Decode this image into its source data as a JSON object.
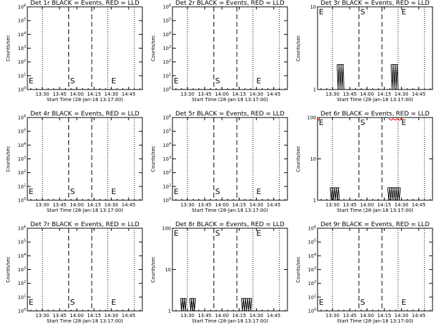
{
  "chart_data": [
    {
      "type": "line",
      "title": "Det 1r BLACK = Events, RED = LLD",
      "xlabel": "Start Time (28-Jan-18 13:17:00)",
      "ylabel": "Counts/sec",
      "yscale": "log",
      "ylim": [
        1,
        1000000
      ],
      "yticks": [
        "10^0",
        "10^1",
        "10^2",
        "10^3",
        "10^4",
        "10^5",
        "10^6"
      ],
      "xticks": [
        "13:30",
        "13:45",
        "14:00",
        "14:15",
        "14:30",
        "14:45"
      ],
      "marker_labels": {
        "left": "E",
        "mid": "S",
        "right": "E"
      },
      "events_blocks": [],
      "lld": false
    },
    {
      "type": "line",
      "title": "Det 2r BLACK = Events, RED = LLD",
      "xlabel": "Start Time (28-Jan-18 13:17:00)",
      "ylabel": "Counts/sec",
      "yscale": "log",
      "ylim": [
        1,
        1000000
      ],
      "yticks": [
        "10^0",
        "10^1",
        "10^2",
        "10^3",
        "10^4",
        "10^5",
        "10^6"
      ],
      "xticks": [
        "13:30",
        "13:45",
        "14:00",
        "14:15",
        "14:30",
        "14:45"
      ],
      "marker_labels": {
        "left": "E",
        "mid": "S",
        "right": "E"
      },
      "events_blocks": [],
      "lld": false
    },
    {
      "type": "line",
      "title": "Det 3r BLACK = Events, RED = LLD",
      "xlabel": "Start Time (28-Jan-18 13:17:00)",
      "ylabel": "Counts/sec",
      "yscale": "log",
      "ylim": [
        1,
        10
      ],
      "yticks": [
        "1",
        "10"
      ],
      "xticks": [
        "13:30",
        "13:45",
        "14:00",
        "14:15",
        "14:30",
        "14:45"
      ],
      "marker_labels": {
        "left": "E",
        "mid": "S",
        "right": "E"
      },
      "events_blocks": [
        {
          "start": "13:34",
          "end": "13:40",
          "level": 2
        },
        {
          "start": "14:21",
          "end": "14:27",
          "level": 2
        }
      ],
      "lld": false
    },
    {
      "type": "line",
      "title": "Det 4r BLACK = Events, RED = LLD",
      "xlabel": "Start Time (28-Jan-18 13:17:00)",
      "ylabel": "Counts/sec",
      "yscale": "log",
      "ylim": [
        1,
        1000000
      ],
      "yticks": [
        "10^0",
        "10^1",
        "10^2",
        "10^3",
        "10^4",
        "10^5",
        "10^6"
      ],
      "xticks": [
        "13:30",
        "13:45",
        "14:00",
        "14:15",
        "14:30",
        "14:45"
      ],
      "marker_labels": {
        "left": "E",
        "mid": "S",
        "right": "E"
      },
      "events_blocks": [],
      "lld": false
    },
    {
      "type": "line",
      "title": "Det 5r BLACK = Events, RED = LLD",
      "xlabel": "Start Time (28-Jan-18 13:17:00)",
      "ylabel": "Counts/sec",
      "yscale": "log",
      "ylim": [
        1,
        1000000
      ],
      "yticks": [
        "10^0",
        "10^1",
        "10^2",
        "10^3",
        "10^4",
        "10^5",
        "10^6"
      ],
      "xticks": [
        "13:30",
        "13:45",
        "14:00",
        "14:15",
        "14:30",
        "14:45"
      ],
      "marker_labels": {
        "left": "E",
        "mid": "S",
        "right": "E"
      },
      "events_blocks": [],
      "lld": false
    },
    {
      "type": "line",
      "title": "Det 6r BLACK = Events, RED = LLD",
      "xlabel": "Start Time (28-Jan-18 13:17:00)",
      "ylabel": "Counts/sec",
      "yscale": "log",
      "ylim": [
        1,
        100
      ],
      "yticks": [
        "1",
        "10",
        "100"
      ],
      "xticks": [
        "13:30",
        "13:45",
        "14:00",
        "14:15",
        "14:30",
        "14:45"
      ],
      "marker_labels": {
        "left": "E",
        "mid": "S",
        "right": "E"
      },
      "events_blocks": [
        {
          "start": "13:28",
          "end": "13:36",
          "level": 2
        },
        {
          "start": "14:18",
          "end": "14:29",
          "level": 2
        }
      ],
      "lld": true,
      "lld_level": 90,
      "lld_ranges": [
        {
          "start": "13:17",
          "end": "13:19"
        },
        {
          "start": "14:19",
          "end": "14:32"
        }
      ]
    },
    {
      "type": "line",
      "title": "Det 7r BLACK = Events, RED = LLD",
      "xlabel": "Start Time (28-Jan-18 13:17:00)",
      "ylabel": "Counts/sec",
      "yscale": "log",
      "ylim": [
        1,
        1000000
      ],
      "yticks": [
        "10^0",
        "10^1",
        "10^2",
        "10^3",
        "10^4",
        "10^5",
        "10^6"
      ],
      "xticks": [
        "13:30",
        "13:45",
        "14:00",
        "14:15",
        "14:30",
        "14:45"
      ],
      "marker_labels": {
        "left": "E",
        "mid": "S",
        "right": "E"
      },
      "events_blocks": [],
      "lld": false
    },
    {
      "type": "line",
      "title": "Det 8r BLACK = Events, RED = LLD",
      "xlabel": "Start Time (28-Jan-18 13:17:00)",
      "ylabel": "Counts/sec",
      "yscale": "log",
      "ylim": [
        1,
        100
      ],
      "yticks": [
        "1",
        "10",
        "100"
      ],
      "xticks": [
        "13:30",
        "13:45",
        "14:00",
        "14:15",
        "14:30",
        "14:45"
      ],
      "marker_labels": {
        "left": "E",
        "mid": "S",
        "right": "E"
      },
      "events_blocks": [
        {
          "start": "13:24",
          "end": "13:29",
          "level": 2
        },
        {
          "start": "13:32",
          "end": "13:37",
          "level": 2
        },
        {
          "start": "14:17",
          "end": "14:26",
          "level": 2
        }
      ],
      "lld": false
    },
    {
      "type": "line",
      "title": "Det 9r BLACK = Events, RED = LLD",
      "xlabel": "Start Time (28-Jan-18 13:17:00)",
      "ylabel": "Counts/sec",
      "yscale": "log",
      "ylim": [
        1,
        1000000
      ],
      "yticks": [
        "10^0",
        "10^1",
        "10^2",
        "10^3",
        "10^4",
        "10^5",
        "10^6"
      ],
      "xticks": [
        "13:30",
        "13:45",
        "14:00",
        "14:15",
        "14:30",
        "14:45"
      ],
      "marker_labels": {
        "left": "E",
        "mid": "S",
        "right": "E"
      },
      "events_blocks": [],
      "lld": false
    }
  ],
  "x_range": [
    "13:17",
    "14:57"
  ],
  "vertical_lines": {
    "dotted": [
      "13:30",
      "14:27",
      "14:50"
    ],
    "dashed": [
      "13:53",
      "14:13"
    ]
  },
  "colors": {
    "events": "#000000",
    "lld": "#ff0000",
    "background": "#ffffff"
  }
}
